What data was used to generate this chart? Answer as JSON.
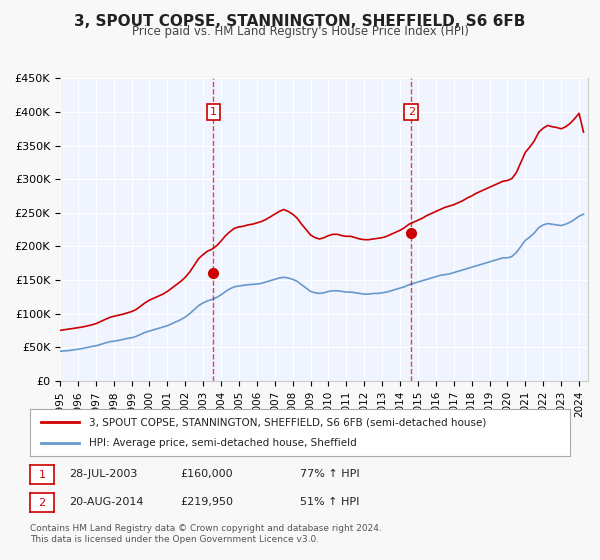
{
  "title": "3, SPOUT COPSE, STANNINGTON, SHEFFIELD, S6 6FB",
  "subtitle": "Price paid vs. HM Land Registry's House Price Index (HPI)",
  "xlabel": "",
  "ylabel": "",
  "ylim": [
    0,
    450000
  ],
  "yticks": [
    0,
    50000,
    100000,
    150000,
    200000,
    250000,
    300000,
    350000,
    400000,
    450000
  ],
  "ytick_labels": [
    "£0",
    "£50K",
    "£100K",
    "£150K",
    "£200K",
    "£250K",
    "£300K",
    "£350K",
    "£400K",
    "£450K"
  ],
  "xlim_start": 1995.0,
  "xlim_end": 2024.5,
  "xticks": [
    1995,
    1996,
    1997,
    1998,
    1999,
    2000,
    2001,
    2002,
    2003,
    2004,
    2005,
    2006,
    2007,
    2008,
    2009,
    2010,
    2011,
    2012,
    2013,
    2014,
    2015,
    2016,
    2017,
    2018,
    2019,
    2020,
    2021,
    2022,
    2023,
    2024
  ],
  "background_color": "#f0f4ff",
  "plot_bg_color": "#f0f4ff",
  "grid_color": "#ffffff",
  "red_line_color": "#cc0000",
  "blue_line_color": "#6699cc",
  "sale1_x": 2003.57,
  "sale1_y": 160000,
  "sale1_label": "1",
  "sale1_date": "28-JUL-2003",
  "sale1_price": "£160,000",
  "sale1_hpi": "77% ↑ HPI",
  "sale2_x": 2014.63,
  "sale2_y": 219950,
  "sale2_label": "2",
  "sale2_date": "20-AUG-2014",
  "sale2_price": "£219,950",
  "sale2_hpi": "51% ↑ HPI",
  "legend_line1": "3, SPOUT COPSE, STANNINGTON, SHEFFIELD, S6 6FB (semi-detached house)",
  "legend_line2": "HPI: Average price, semi-detached house, Sheffield",
  "footer1": "Contains HM Land Registry data © Crown copyright and database right 2024.",
  "footer2": "This data is licensed under the Open Government Licence v3.0.",
  "hpi_data_x": [
    1995.0,
    1995.25,
    1995.5,
    1995.75,
    1996.0,
    1996.25,
    1996.5,
    1996.75,
    1997.0,
    1997.25,
    1997.5,
    1997.75,
    1998.0,
    1998.25,
    1998.5,
    1998.75,
    1999.0,
    1999.25,
    1999.5,
    1999.75,
    2000.0,
    2000.25,
    2000.5,
    2000.75,
    2001.0,
    2001.25,
    2001.5,
    2001.75,
    2002.0,
    2002.25,
    2002.5,
    2002.75,
    2003.0,
    2003.25,
    2003.5,
    2003.75,
    2004.0,
    2004.25,
    2004.5,
    2004.75,
    2005.0,
    2005.25,
    2005.5,
    2005.75,
    2006.0,
    2006.25,
    2006.5,
    2006.75,
    2007.0,
    2007.25,
    2007.5,
    2007.75,
    2008.0,
    2008.25,
    2008.5,
    2008.75,
    2009.0,
    2009.25,
    2009.5,
    2009.75,
    2010.0,
    2010.25,
    2010.5,
    2010.75,
    2011.0,
    2011.25,
    2011.5,
    2011.75,
    2012.0,
    2012.25,
    2012.5,
    2012.75,
    2013.0,
    2013.25,
    2013.5,
    2013.75,
    2014.0,
    2014.25,
    2014.5,
    2014.75,
    2015.0,
    2015.25,
    2015.5,
    2015.75,
    2016.0,
    2016.25,
    2016.5,
    2016.75,
    2017.0,
    2017.25,
    2017.5,
    2017.75,
    2018.0,
    2018.25,
    2018.5,
    2018.75,
    2019.0,
    2019.25,
    2019.5,
    2019.75,
    2020.0,
    2020.25,
    2020.5,
    2020.75,
    2021.0,
    2021.25,
    2021.5,
    2021.75,
    2022.0,
    2022.25,
    2022.5,
    2022.75,
    2023.0,
    2023.25,
    2023.5,
    2023.75,
    2024.0,
    2024.25
  ],
  "hpi_data_y": [
    44000,
    44500,
    45000,
    46000,
    47000,
    48000,
    49500,
    51000,
    52000,
    54000,
    56000,
    58000,
    59000,
    60000,
    61500,
    63000,
    64000,
    66000,
    69000,
    72000,
    74000,
    76000,
    78000,
    80000,
    82000,
    85000,
    88000,
    91000,
    95000,
    100000,
    106000,
    112000,
    116000,
    119000,
    121000,
    124000,
    128000,
    133000,
    137000,
    140000,
    141000,
    142000,
    143000,
    143500,
    144000,
    145000,
    147000,
    149000,
    151000,
    153000,
    154000,
    153000,
    151000,
    148000,
    143000,
    138000,
    133000,
    131000,
    130000,
    131000,
    133000,
    134000,
    134000,
    133000,
    132000,
    132000,
    131000,
    130000,
    129000,
    129000,
    130000,
    130000,
    131000,
    132000,
    134000,
    136000,
    138000,
    140000,
    143000,
    145000,
    147000,
    149000,
    151000,
    153000,
    155000,
    157000,
    158000,
    159000,
    161000,
    163000,
    165000,
    167000,
    169000,
    171000,
    173000,
    175000,
    177000,
    179000,
    181000,
    183000,
    183000,
    185000,
    191000,
    200000,
    209000,
    214000,
    220000,
    228000,
    232000,
    234000,
    233000,
    232000,
    231000,
    233000,
    236000,
    240000,
    245000,
    248000
  ],
  "red_data_x": [
    1995.0,
    1995.25,
    1995.5,
    1995.75,
    1996.0,
    1996.25,
    1996.5,
    1996.75,
    1997.0,
    1997.25,
    1997.5,
    1997.75,
    1998.0,
    1998.25,
    1998.5,
    1998.75,
    1999.0,
    1999.25,
    1999.5,
    1999.75,
    2000.0,
    2000.25,
    2000.5,
    2000.75,
    2001.0,
    2001.25,
    2001.5,
    2001.75,
    2002.0,
    2002.25,
    2002.5,
    2002.75,
    2003.0,
    2003.25,
    2003.5,
    2003.75,
    2004.0,
    2004.25,
    2004.5,
    2004.75,
    2005.0,
    2005.25,
    2005.5,
    2005.75,
    2006.0,
    2006.25,
    2006.5,
    2006.75,
    2007.0,
    2007.25,
    2007.5,
    2007.75,
    2008.0,
    2008.25,
    2008.5,
    2008.75,
    2009.0,
    2009.25,
    2009.5,
    2009.75,
    2010.0,
    2010.25,
    2010.5,
    2010.75,
    2011.0,
    2011.25,
    2011.5,
    2011.75,
    2012.0,
    2012.25,
    2012.5,
    2012.75,
    2013.0,
    2013.25,
    2013.5,
    2013.75,
    2014.0,
    2014.25,
    2014.5,
    2014.75,
    2015.0,
    2015.25,
    2015.5,
    2015.75,
    2016.0,
    2016.25,
    2016.5,
    2016.75,
    2017.0,
    2017.25,
    2017.5,
    2017.75,
    2018.0,
    2018.25,
    2018.5,
    2018.75,
    2019.0,
    2019.25,
    2019.5,
    2019.75,
    2020.0,
    2020.25,
    2020.5,
    2020.75,
    2021.0,
    2021.25,
    2021.5,
    2021.75,
    2022.0,
    2022.25,
    2022.5,
    2022.75,
    2023.0,
    2023.25,
    2023.5,
    2023.75,
    2024.0,
    2024.25
  ],
  "red_data_y": [
    75000,
    76000,
    77000,
    78000,
    79000,
    80000,
    81500,
    83000,
    85000,
    88000,
    91000,
    94000,
    96000,
    97500,
    99000,
    101000,
    103000,
    106000,
    111000,
    116000,
    120000,
    123000,
    126000,
    129000,
    133000,
    138000,
    143000,
    148000,
    154000,
    162000,
    172000,
    182000,
    188000,
    193000,
    196000,
    201000,
    208000,
    216000,
    222000,
    227000,
    229000,
    230000,
    232000,
    233000,
    235000,
    237000,
    240000,
    244000,
    248000,
    252000,
    255000,
    252000,
    248000,
    242000,
    233000,
    225000,
    217000,
    213000,
    211000,
    213000,
    216000,
    218000,
    218000,
    216000,
    215000,
    215000,
    213000,
    211000,
    210000,
    210000,
    211000,
    212000,
    213000,
    215000,
    218000,
    221000,
    224000,
    228000,
    233000,
    236000,
    239000,
    242000,
    246000,
    249000,
    252000,
    255000,
    258000,
    260000,
    262000,
    265000,
    268000,
    272000,
    275000,
    279000,
    282000,
    285000,
    288000,
    291000,
    294000,
    297000,
    298000,
    301000,
    310000,
    325000,
    340000,
    348000,
    357000,
    370000,
    376000,
    380000,
    378000,
    377000,
    375000,
    378000,
    383000,
    390000,
    398000,
    370000
  ]
}
